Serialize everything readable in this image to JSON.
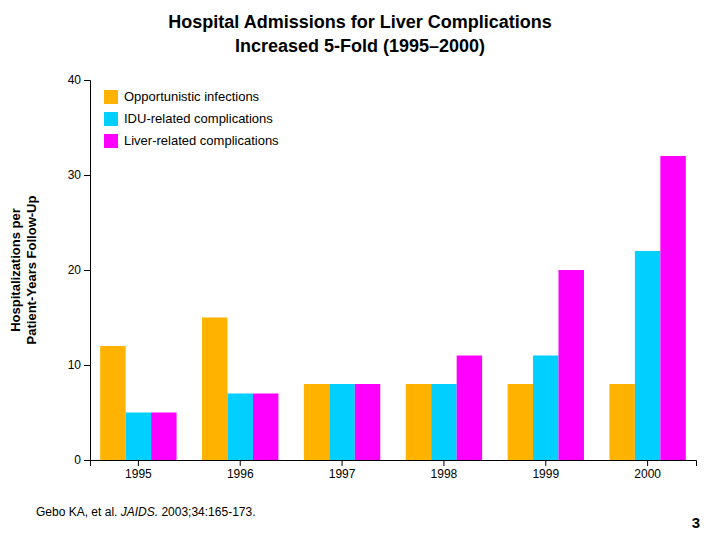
{
  "chart_data": {
    "type": "bar",
    "title": "Hospital Admissions for Liver Complications",
    "subtitle": "Increased 5-Fold (1995–2000)",
    "y_label": "Hospitalizations per\nPatient-Years Follow-Up",
    "categories": [
      "1995",
      "1996",
      "1997",
      "1998",
      "1999",
      "2000"
    ],
    "series": [
      {
        "name": "Opportunistic infections",
        "color": "#FFB300",
        "values": [
          12,
          15,
          8,
          8,
          8,
          8
        ]
      },
      {
        "name": "IDU-related complications",
        "color": "#00CFFF",
        "values": [
          5,
          7,
          8,
          8,
          11,
          22
        ]
      },
      {
        "name": "Liver-related complications",
        "color": "#FF00FF",
        "values": [
          5,
          7,
          8,
          11,
          20,
          32
        ]
      }
    ],
    "ylim": [
      0,
      40
    ],
    "yticks": [
      0,
      10,
      20,
      30,
      40
    ],
    "grid": false,
    "legend": "upper left",
    "footnote": [
      "Gebo KA, et al. ",
      "JAIDS.",
      " 2003;34:165-173."
    ],
    "annotations": [
      "3"
    ]
  }
}
